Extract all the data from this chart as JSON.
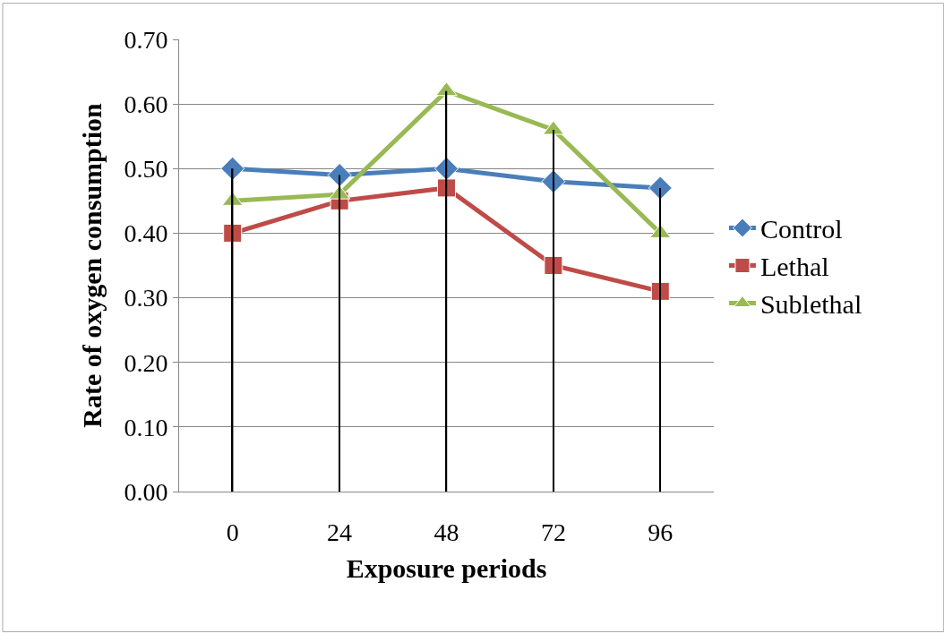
{
  "chart_data": {
    "type": "line",
    "xlabel": "Exposure periods",
    "ylabel": "Rate of oxygen consumption",
    "categories": [
      "0",
      "24",
      "48",
      "72",
      "96"
    ],
    "series": [
      {
        "type": "bar",
        "color": "#000000",
        "values": [
          0.5,
          0.49,
          0.62,
          0.56,
          0.47
        ]
      },
      {
        "name": "Control",
        "color": "#4a7ebb",
        "marker": "diamond",
        "values": [
          0.5,
          0.49,
          0.5,
          0.48,
          0.47
        ]
      },
      {
        "name": "Lethal",
        "color": "#be4b48",
        "marker": "square",
        "values": [
          0.4,
          0.45,
          0.47,
          0.35,
          0.31
        ]
      },
      {
        "name": "Sublethal",
        "color": "#98b954",
        "marker": "triangle",
        "values": [
          0.45,
          0.46,
          0.62,
          0.56,
          0.4
        ]
      }
    ],
    "ylim": [
      0,
      0.7
    ],
    "yticks": [
      {
        "value": 0,
        "label": "0.00"
      },
      {
        "value": 0.1,
        "label": "0.10"
      },
      {
        "value": 0.2,
        "label": "0.20"
      },
      {
        "value": 0.3,
        "label": "0.30"
      },
      {
        "value": 0.4,
        "label": "0.40"
      },
      {
        "value": 0.5,
        "label": "0.50"
      },
      {
        "value": 0.6,
        "label": "0.60"
      },
      {
        "value": 0.7,
        "label": "0.70"
      }
    ],
    "grid": "y",
    "legend": "right",
    "line_style": "solid"
  }
}
